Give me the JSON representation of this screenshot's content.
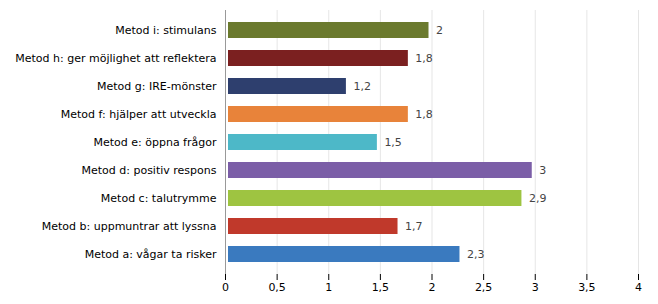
{
  "chart_data": {
    "type": "bar",
    "orientation": "horizontal",
    "categories": [
      "Metod i: stimulans",
      "Metod h: ger möjlighet att reflektera",
      "Metod g: IRE-mönster",
      "Metod f: hjälper att utveckla",
      "Metod e: öppna frågor",
      "Metod d: positiv respons",
      "Metod c: talutrymme",
      "Metod b: uppmuntrar att lyssna",
      "Metod a: vågar ta risker"
    ],
    "values": [
      2.0,
      1.8,
      1.2,
      1.8,
      1.5,
      3.0,
      2.9,
      1.7,
      2.3
    ],
    "value_labels": [
      "2",
      "1,8",
      "1,2",
      "1,8",
      "1,5",
      "3",
      "2,9",
      "1,7",
      "2,3"
    ],
    "data_labels": true,
    "colors": [
      "#6b7a2e",
      "#7b2020",
      "#2e3f6e",
      "#e8833a",
      "#4db8c8",
      "#7b5ea7",
      "#9ec441",
      "#c0392b",
      "#3a7abf"
    ],
    "xlim": [
      0,
      4
    ],
    "xticks": [
      0,
      {
        "value": 0.5,
        "label": "0,5"
      },
      1,
      {
        "value": 1.5,
        "label": "1,5"
      },
      2,
      {
        "value": 2.5,
        "label": "2,5"
      },
      3,
      {
        "value": 3.5,
        "label": "3,5"
      },
      4
    ],
    "grid": true
  }
}
